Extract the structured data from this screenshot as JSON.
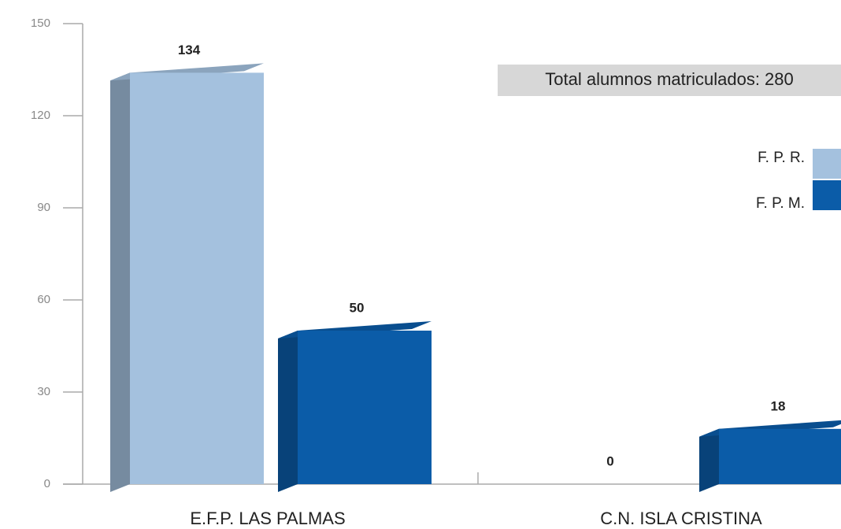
{
  "chart_data": {
    "type": "bar3d",
    "annotation": "Total alumnos matriculados: 280",
    "categories": [
      "E.F.P. LAS PALMAS",
      "C.N. ISLA CRISTINA"
    ],
    "series": [
      {
        "name": "F. P. R.",
        "color": "#a4c1de",
        "values": [
          134,
          0
        ]
      },
      {
        "name": "F. P. M.",
        "color": "#0b5ca8",
        "values": [
          50,
          18
        ]
      }
    ],
    "ylim": [
      0,
      150
    ],
    "yticks": [
      0,
      30,
      60,
      90,
      120,
      150
    ],
    "legend": "right"
  }
}
